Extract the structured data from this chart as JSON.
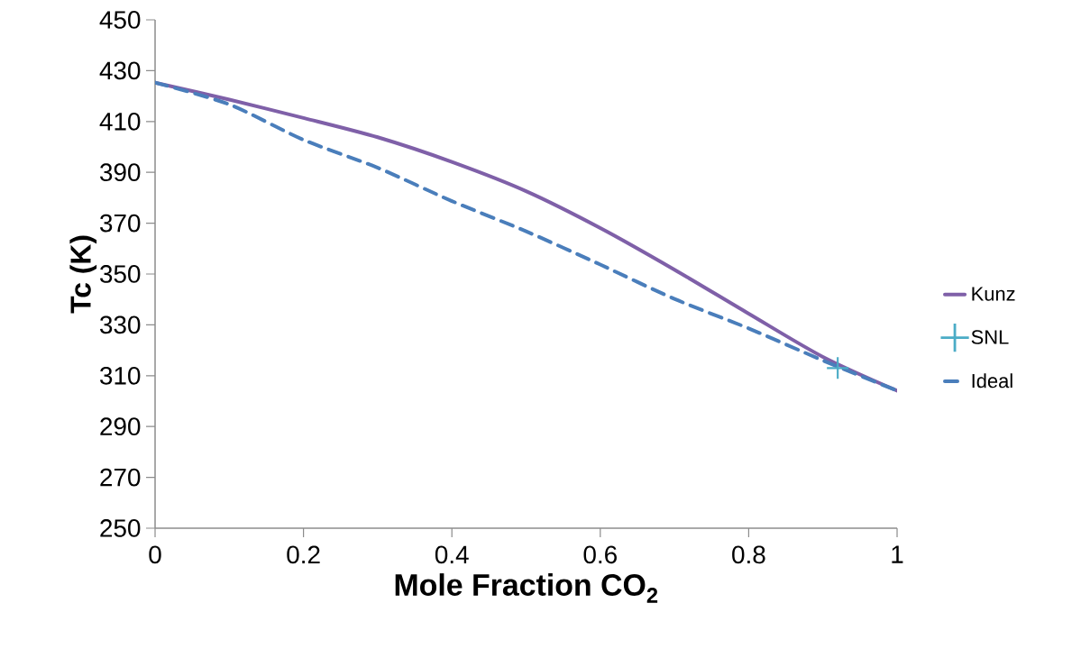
{
  "chart_data": {
    "type": "line",
    "xlabel": "Mole Fraction CO$_{2}$",
    "ylabel": "Tc (K)",
    "xlim": [
      0,
      1
    ],
    "ylim": [
      250,
      450
    ],
    "xticks": [
      0,
      0.2,
      0.4,
      0.6,
      0.8,
      1
    ],
    "yticks": [
      250,
      270,
      290,
      310,
      330,
      350,
      370,
      390,
      410,
      430,
      450
    ],
    "grid": false,
    "legend": "right",
    "series": [
      {
        "name": "Kunz",
        "color": "#7f60a8",
        "line_style": "solid",
        "marker": "none",
        "x": [
          0,
          0.1,
          0.2,
          0.3,
          0.4,
          0.5,
          0.6,
          0.7,
          0.8,
          0.9,
          1
        ],
        "values": [
          425.3,
          418.6,
          411.4,
          403.8,
          394.1,
          382.6,
          368.1,
          351.7,
          334.4,
          317.4,
          304.1
        ]
      },
      {
        "name": "SNL",
        "type": "scatter",
        "color": "#4bacc6",
        "marker": "cross",
        "x": [
          0.92
        ],
        "values": [
          313
        ]
      },
      {
        "name": "Ideal",
        "color": "#4a7ebb",
        "line_style": "dashed",
        "marker": "none",
        "x": [
          0,
          0.1,
          0.2,
          0.3,
          0.4,
          0.5,
          0.6,
          0.7,
          0.8,
          0.9,
          1
        ],
        "values": [
          425.3,
          416.7,
          402.8,
          391.8,
          378.7,
          366.8,
          353.7,
          340.2,
          328.6,
          316,
          304.1
        ]
      }
    ]
  }
}
